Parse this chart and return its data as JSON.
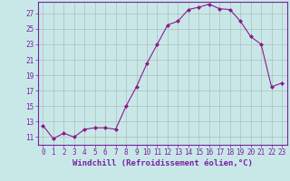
{
  "x": [
    0,
    1,
    2,
    3,
    4,
    5,
    6,
    7,
    8,
    9,
    10,
    11,
    12,
    13,
    14,
    15,
    16,
    17,
    18,
    19,
    20,
    21,
    22,
    23
  ],
  "y": [
    12.5,
    10.8,
    11.5,
    11.0,
    12.0,
    12.2,
    12.2,
    12.0,
    15.0,
    17.5,
    20.5,
    23.0,
    25.5,
    26.0,
    27.5,
    27.8,
    28.2,
    27.6,
    27.5,
    26.0,
    24.0,
    23.0,
    17.5,
    18.0
  ],
  "line_color": "#8b1a8b",
  "marker": "D",
  "marker_size": 2.0,
  "bg_color": "#c8e8e8",
  "grid_color": "#aaaaaa",
  "axis_color": "#7b1fa2",
  "xlabel": "Windchill (Refroidissement éolien,°C)",
  "ylabel": "",
  "xlim": [
    -0.5,
    23.5
  ],
  "ylim": [
    10.0,
    28.5
  ],
  "yticks": [
    11,
    13,
    15,
    17,
    19,
    21,
    23,
    25,
    27
  ],
  "xticks": [
    0,
    1,
    2,
    3,
    4,
    5,
    6,
    7,
    8,
    9,
    10,
    11,
    12,
    13,
    14,
    15,
    16,
    17,
    18,
    19,
    20,
    21,
    22,
    23
  ],
  "tick_fontsize": 5.5,
  "label_fontsize": 6.5
}
